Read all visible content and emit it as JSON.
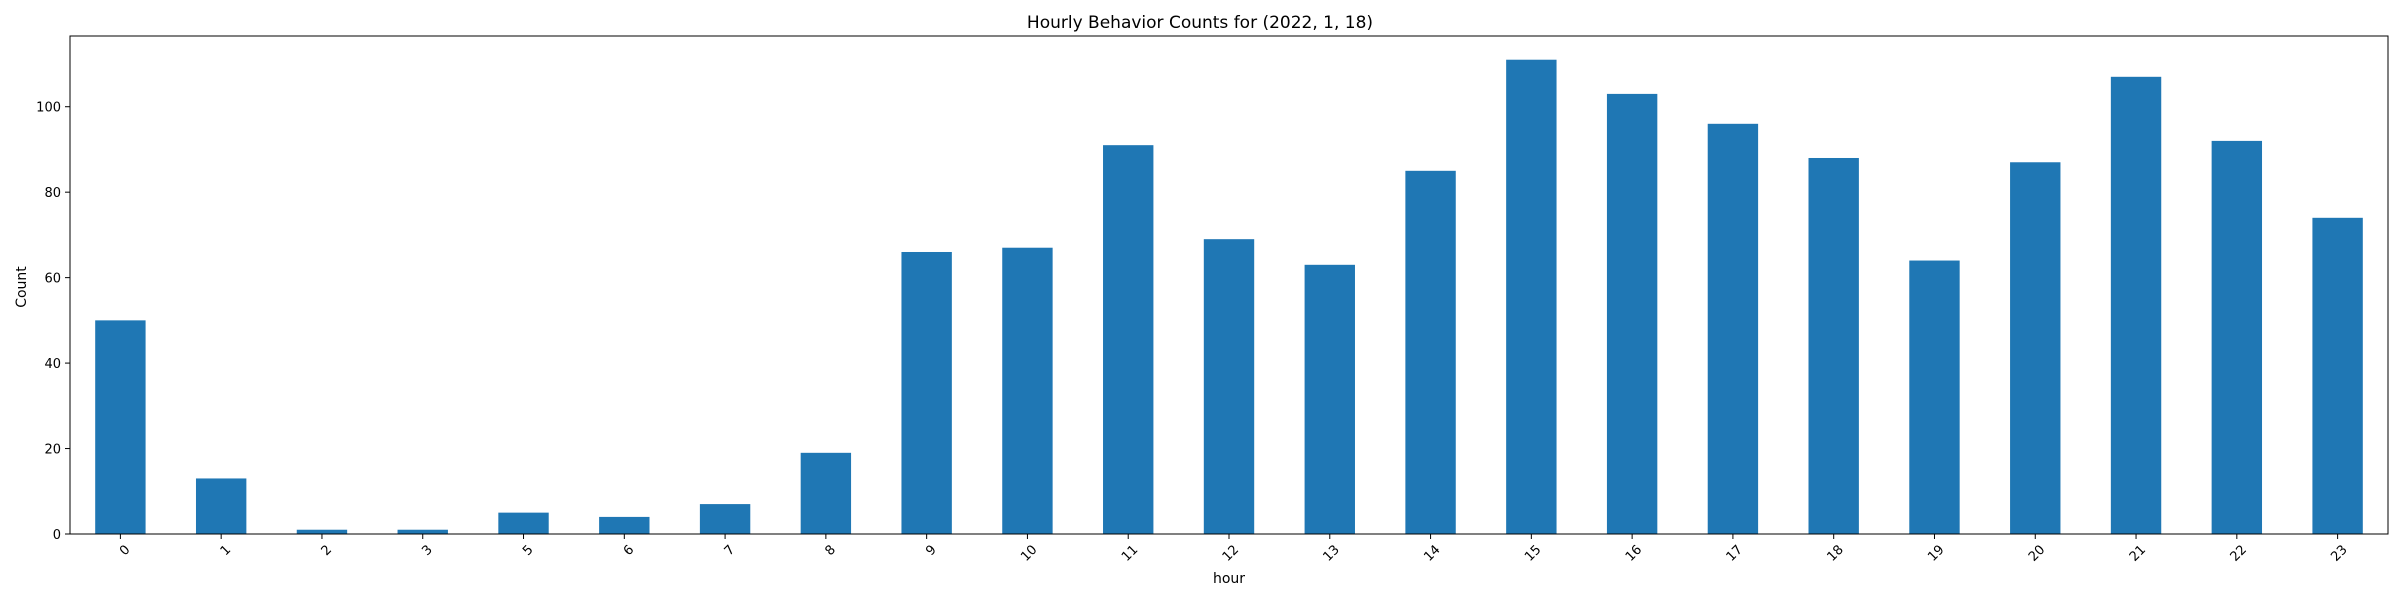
{
  "chart_data": {
    "type": "bar",
    "title": "Hourly Behavior Counts for (2022, 1, 18)",
    "xlabel": "hour",
    "ylabel": "Count",
    "categories": [
      "0",
      "1",
      "2",
      "3",
      "5",
      "6",
      "7",
      "8",
      "9",
      "10",
      "11",
      "12",
      "13",
      "14",
      "15",
      "16",
      "17",
      "18",
      "19",
      "20",
      "21",
      "22",
      "23"
    ],
    "values": [
      50,
      13,
      1,
      1,
      5,
      4,
      7,
      19,
      66,
      67,
      91,
      69,
      63,
      85,
      111,
      103,
      96,
      88,
      64,
      87,
      107,
      92,
      74
    ],
    "ylim": [
      0,
      116.55
    ],
    "yticks": [
      0,
      20,
      40,
      60,
      80,
      100
    ],
    "grid": false,
    "legend": "none",
    "bar_color": "#1f77b4"
  }
}
